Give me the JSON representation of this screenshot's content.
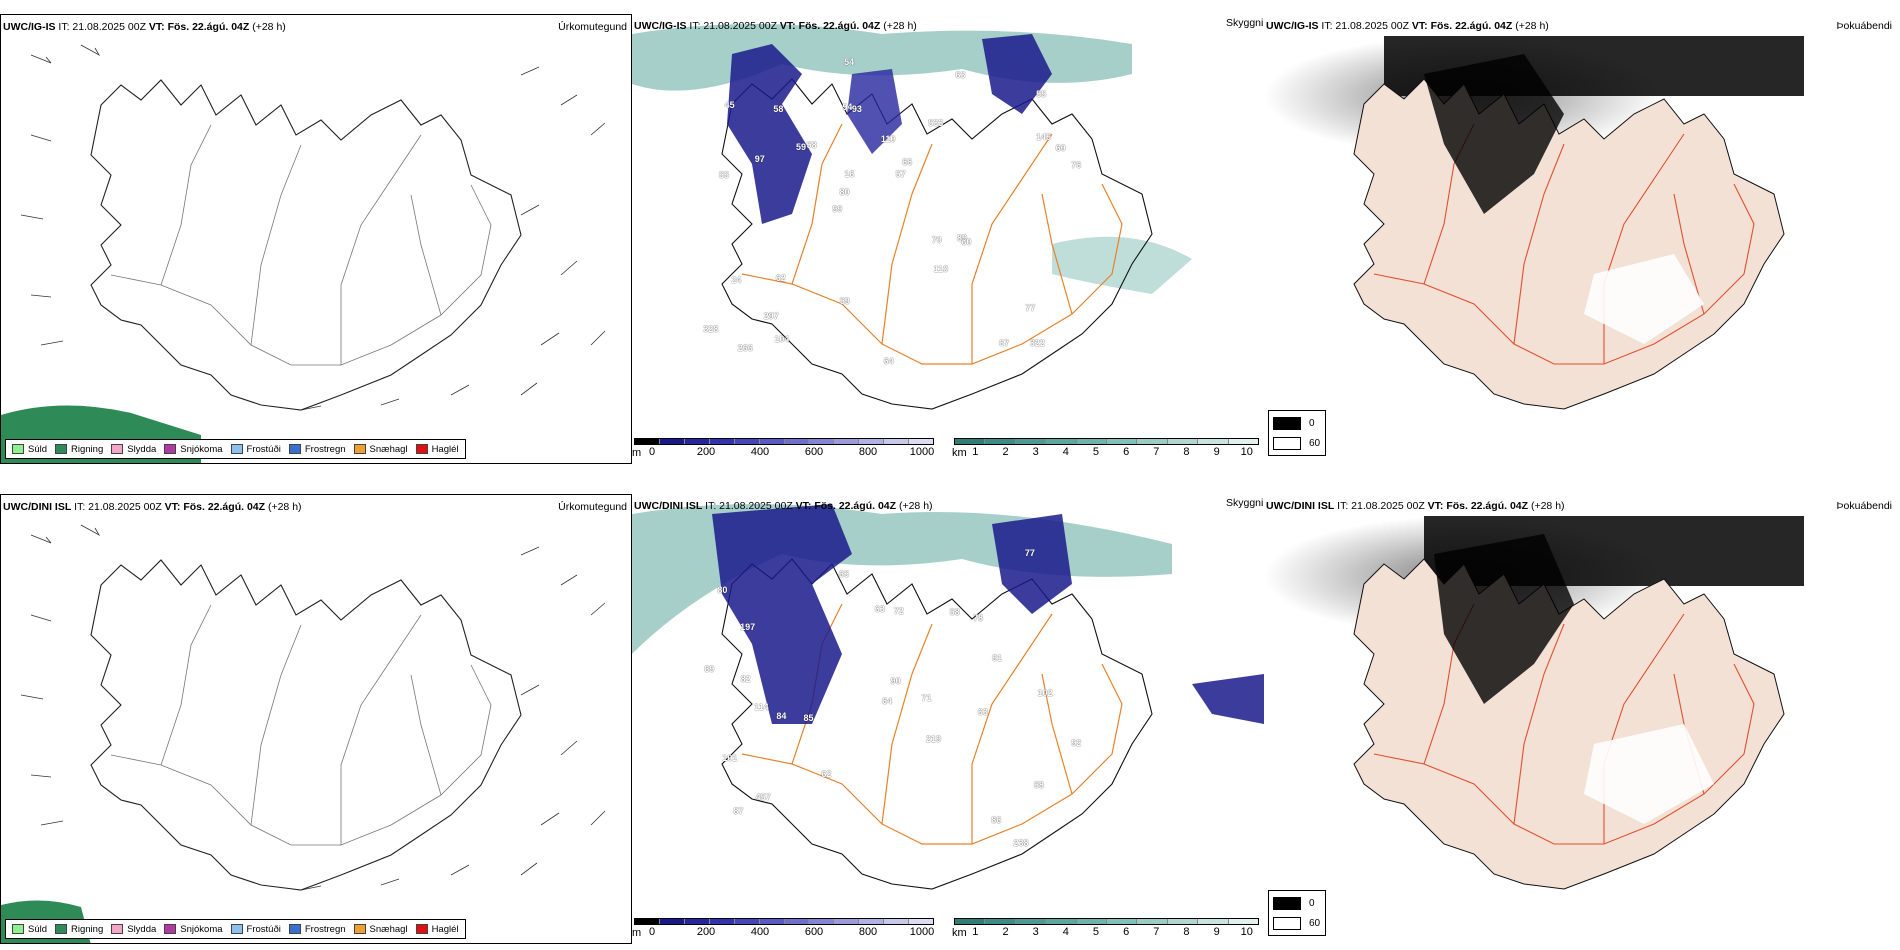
{
  "rows": [
    {
      "model": "UWC/IG-IS",
      "it": "IT: 21.08.2025 00Z",
      "vt": "VT: Fös. 22.ágú. 04Z",
      "lead": "(+28 h)",
      "cloud_numbers": [
        "322",
        "55",
        "55",
        "99",
        "533",
        "266",
        "94",
        "110",
        "24",
        "58",
        "328",
        "297",
        "93",
        "66",
        "60",
        "45",
        "54",
        "76",
        "70",
        "145",
        "80",
        "59",
        "16",
        "58",
        "63",
        "62",
        "67",
        "77",
        "89",
        "64",
        "59",
        "97",
        "110",
        "104",
        "60",
        "57"
      ]
    },
    {
      "model": "UWC/DINI ISL",
      "it": "IT: 21.08.2025 00Z",
      "vt": "VT: Fös. 22.ágú. 04Z",
      "lead": "(+28 h)",
      "cloud_numbers": [
        "238",
        "114",
        "219",
        "80",
        "58",
        "197",
        "457",
        "85",
        "78",
        "63",
        "58",
        "86",
        "62",
        "65",
        "71",
        "101",
        "63",
        "90",
        "69",
        "87",
        "77",
        "72",
        "91",
        "92",
        "102",
        "82",
        "84",
        "64"
      ]
    }
  ],
  "panel_titles": {
    "precip": "Úrkomutegund",
    "ceiling": "Skyggni",
    "fog": "Þokuábendi"
  },
  "precip_legend": [
    {
      "label": "Súld",
      "color": "#8ff08f"
    },
    {
      "label": "Rigning",
      "color": "#2e8b57"
    },
    {
      "label": "Slydda",
      "color": "#f5a6c8"
    },
    {
      "label": "Snjókoma",
      "color": "#b03aa0"
    },
    {
      "label": "Frostúði",
      "color": "#8ec0f0"
    },
    {
      "label": "Frostregn",
      "color": "#3a6fd0"
    },
    {
      "label": "Snæhagl",
      "color": "#f0a030"
    },
    {
      "label": "Haglél",
      "color": "#e01010"
    }
  ],
  "ceiling_scale": {
    "unit": "m",
    "labels": [
      "0",
      "200",
      "400",
      "600",
      "800",
      "1000"
    ],
    "colors": [
      "#000000",
      "#1a1a8c",
      "#26269e",
      "#3333b0",
      "#4646bb",
      "#5a5ac4",
      "#6f6fcc",
      "#8585d4",
      "#9b9bdc",
      "#b1b1e4",
      "#c8c8ec",
      "#dcdcf4"
    ]
  },
  "visibility_scale": {
    "unit": "km",
    "labels": [
      "1",
      "2",
      "3",
      "4",
      "5",
      "6",
      "7",
      "8",
      "9",
      "10"
    ],
    "colors": [
      "#2f7f78",
      "#3e8c85",
      "#4e9a92",
      "#5ea79f",
      "#70b3ab",
      "#84bfb8",
      "#9acbc5",
      "#b1d7d2",
      "#c9e4e0",
      "#e2f1ef"
    ]
  },
  "fog_legend": [
    {
      "label": "0",
      "color": "#000000"
    },
    {
      "label": "60",
      "color": "#ffffff"
    }
  ]
}
